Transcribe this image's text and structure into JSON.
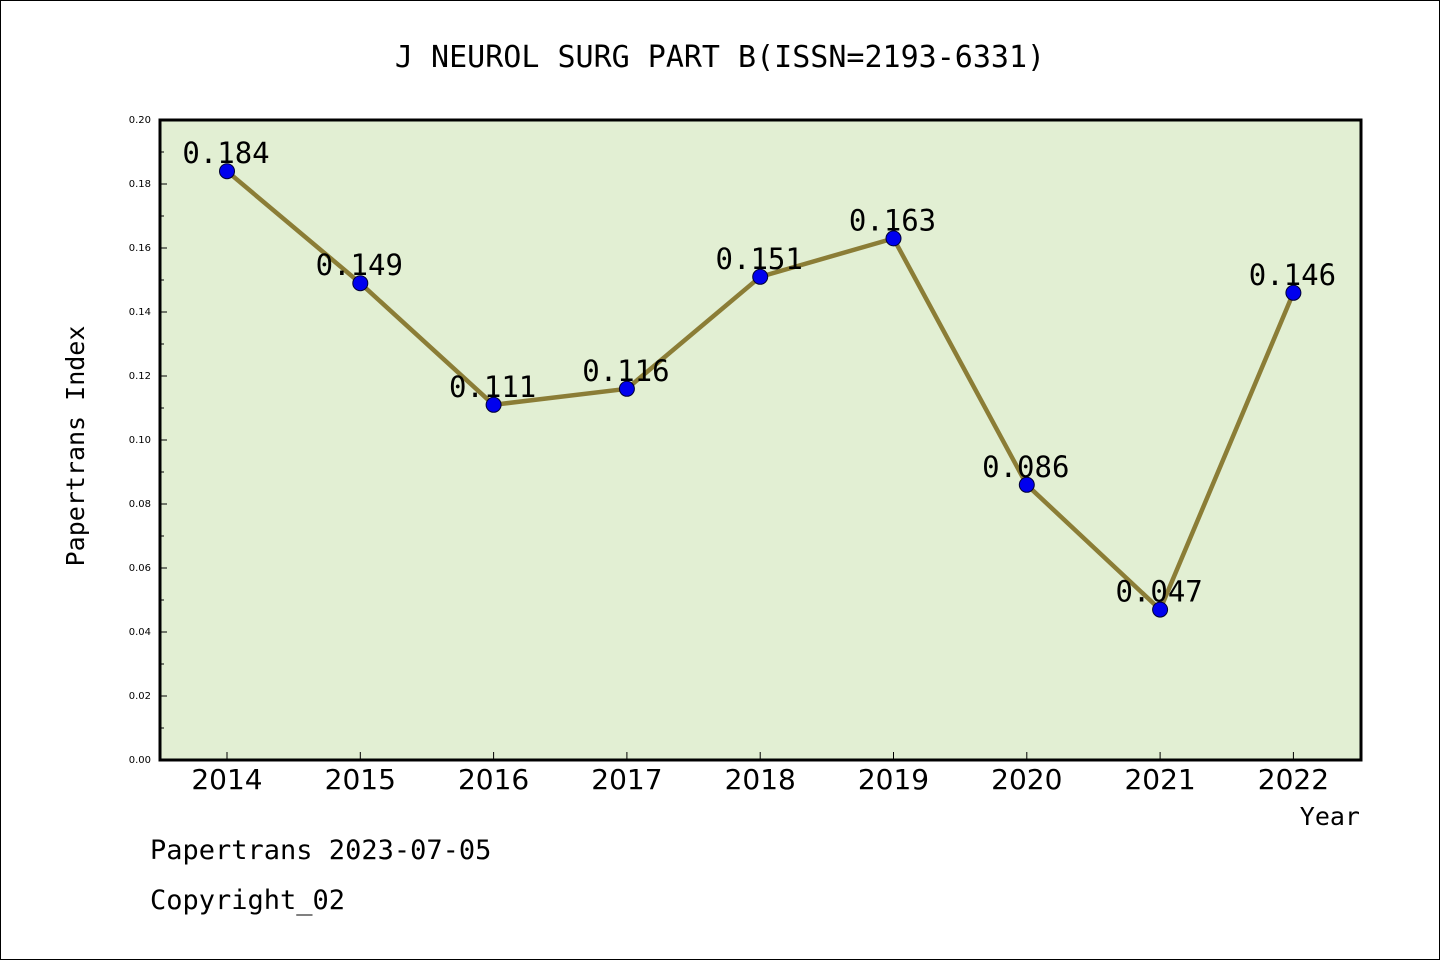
{
  "chart_data": {
    "type": "line",
    "title": "J NEUROL SURG PART B(ISSN=2193-6331)",
    "xlabel": "Year",
    "ylabel": "Papertrans Index",
    "categories": [
      "2014",
      "2015",
      "2016",
      "2017",
      "2018",
      "2019",
      "2020",
      "2021",
      "2022"
    ],
    "series": [
      {
        "values": [
          0.184,
          0.149,
          0.111,
          0.116,
          0.151,
          0.163,
          0.086,
          0.047,
          0.146
        ],
        "data_labels": [
          "0.184",
          "0.149",
          "0.111",
          "0.116",
          "0.151",
          "0.163",
          "0.086",
          "0.047",
          "0.146"
        ]
      }
    ],
    "ylim": [
      0,
      0.2
    ],
    "yticks": [
      0.0,
      0.02,
      0.04,
      0.06,
      0.08,
      0.1,
      0.12,
      0.14,
      0.16,
      0.18,
      0.2
    ],
    "ytick_labels": [
      "0.00",
      "0.02",
      "0.04",
      "0.06",
      "0.08",
      "0.10",
      "0.12",
      "0.14",
      "0.16",
      "0.18",
      "0.20"
    ],
    "grid": false,
    "legend": "none",
    "colors": {
      "plot_background": "#e2efd3",
      "line": "#8b7d36",
      "marker": "#0000ee",
      "axes": "#000000"
    }
  },
  "footer": {
    "date_line": "Papertrans 2023-07-05",
    "copyright": "Copyright_02"
  }
}
